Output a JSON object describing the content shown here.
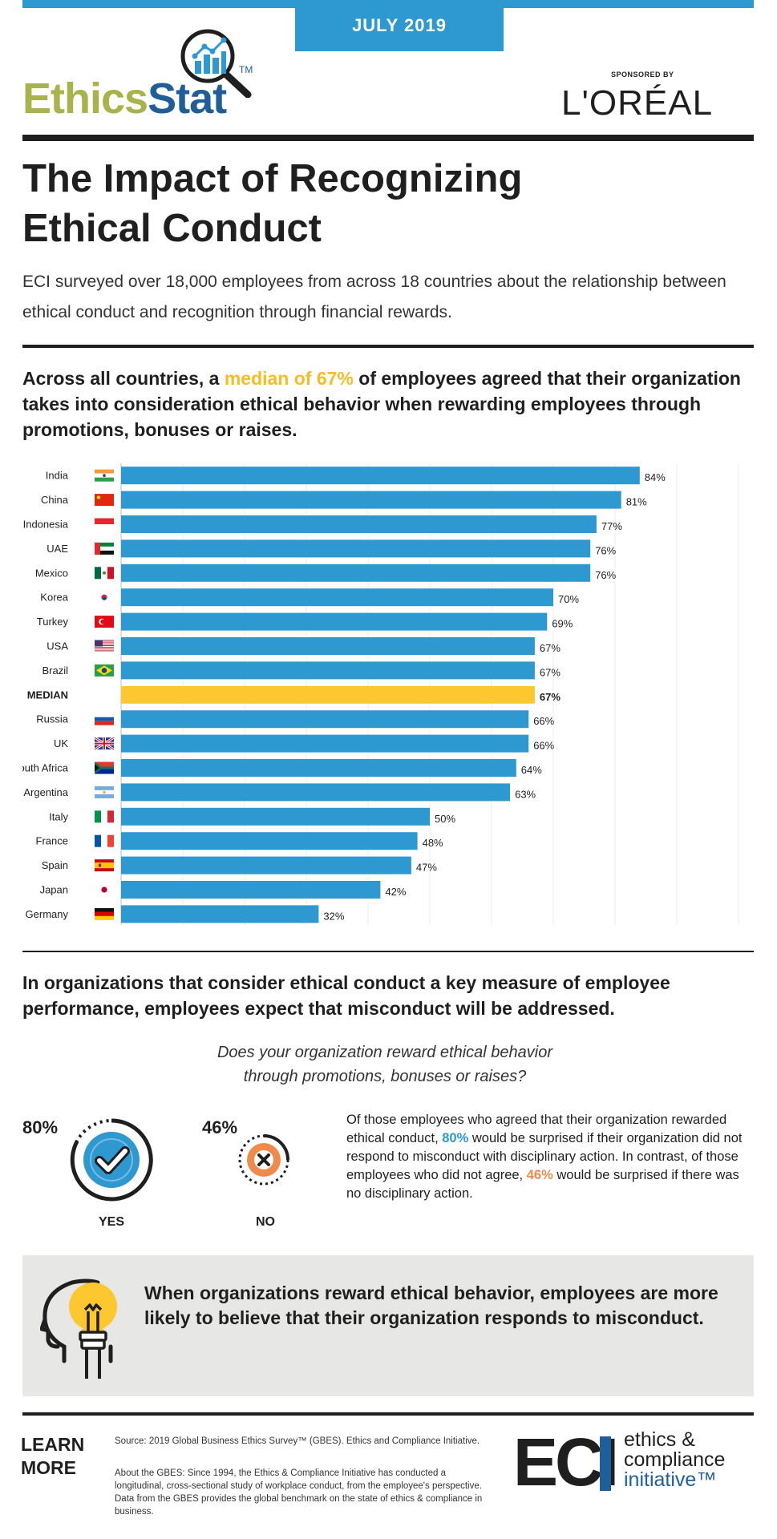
{
  "header": {
    "date": "JULY 2019",
    "logo_ethics": "Ethics",
    "logo_stat": "Stat",
    "logo_tm": "TM",
    "sponsored_by": "SPONSORED BY",
    "sponsor": "L'ORÉAL"
  },
  "title_line1": "The Impact of Recognizing",
  "title_line2": "Ethical Conduct",
  "intro": "ECI surveyed over 18,000 employees from across 18 countries about the relationship between ethical conduct and recognition through financial rewards.",
  "lead": {
    "before": "Across all countries, a ",
    "highlight": "median of 67%",
    "after": " of employees agreed that their organization takes into consideration ethical behavior when rewarding employees through promotions, bonuses or raises."
  },
  "chart_data": {
    "type": "bar",
    "orientation": "horizontal",
    "categories": [
      "India",
      "China",
      "Indonesia",
      "UAE",
      "Mexico",
      "Korea",
      "Turkey",
      "USA",
      "Brazil",
      "MEDIAN",
      "Russia",
      "UK",
      "South Africa",
      "Argentina",
      "Italy",
      "France",
      "Spain",
      "Japan",
      "Germany"
    ],
    "values": [
      84,
      81,
      77,
      76,
      76,
      70,
      69,
      67,
      67,
      67,
      66,
      66,
      64,
      63,
      50,
      48,
      47,
      42,
      32
    ],
    "value_labels": [
      "84%",
      "81%",
      "77%",
      "76%",
      "76%",
      "70%",
      "69%",
      "67%",
      "67%",
      "67%",
      "66%",
      "66%",
      "64%",
      "63%",
      "50%",
      "48%",
      "47%",
      "42%",
      "32%"
    ],
    "highlight_category": "MEDIAN",
    "bar_color": "#2e98d1",
    "highlight_color": "#fdc72f",
    "xlim": [
      0,
      100
    ],
    "grid": true
  },
  "section2": {
    "lead": "In organizations that consider ethical conduct a key measure of employee performance, employees expect that misconduct will be addressed.",
    "question_line1": "Does your organization reward ethical behavior",
    "question_line2": "through promotions, bonuses or raises?",
    "yes_pct": "80%",
    "no_pct": "46%",
    "yes_label": "YES",
    "no_label": "NO",
    "yes_color": "#2e98d1",
    "no_color": "#f08a4b",
    "para_1": "Of those employees who agreed that their organization rewarded ethical conduct, ",
    "para_2": "80%",
    "para_3": " would be surprised if their organization did not respond to misconduct with disciplinary action. In contrast, of those employees who did not agree, ",
    "para_4": "46%",
    "para_5": " would be surprised if there was no disciplinary action."
  },
  "callout": "When organizations reward ethical behavior, employees are more likely to believe that their organization responds to misconduct.",
  "footer": {
    "learn": "LEARN",
    "more": "MORE",
    "source": "Source: 2019 Global Business Ethics Survey™ (GBES). Ethics and Compliance Initiative.",
    "about": "About the GBES: Since 1994, the Ethics & Compliance Initiative has conducted a longitudinal, cross-sectional study of workplace conduct, from the employee's perspective. Data from the GBES provides the global benchmark on the state of ethics & compliance in business.",
    "eci": "ECI",
    "eci_line1": "ethics &",
    "eci_line2": "compliance",
    "eci_line3": "initiative™"
  }
}
